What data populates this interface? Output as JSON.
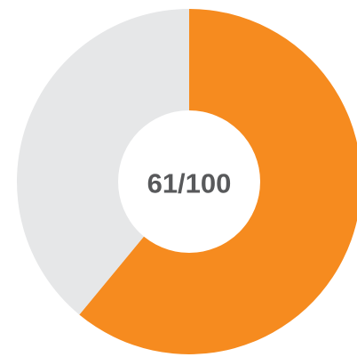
{
  "chart_data": {
    "type": "donut",
    "center_label": "61/100",
    "values": [
      61,
      39
    ],
    "colors": [
      "#f68b1f",
      "#e6e7e8"
    ]
  }
}
